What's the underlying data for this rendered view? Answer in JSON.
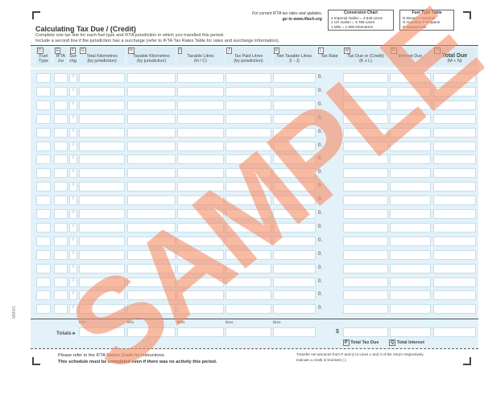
{
  "note": [
    "For current IFTA tax rates and updates,",
    "go to www.iftach.org"
  ],
  "conversion": {
    "title": "Conversion Chart",
    "lines": [
      "1 Imperial Gallon = 4.546 Litres",
      "1 US Gallon      = 3.785 Litres",
      "1 Mile = 1.609 Kilometres"
    ]
  },
  "fuel": {
    "title": "Fuel Type Table",
    "lines": [
      "D-Diesel     A-Gasohol",
      "G-Gasoline   P-Propane",
      "N-Natural Gas"
    ]
  },
  "title": "Calculating Tax Due / (Credit)",
  "instructions": [
    "Complete one tax line for each fuel type and  IFTA jurisdiction in which you travelled this period.",
    "Include a second line if the jurisdiction has a surcharge (refer to IFTA Tax Rates Table for rates and surcharge information)."
  ],
  "columns": [
    {
      "letter": "D",
      "label": "Fuel Type",
      "sub": ""
    },
    {
      "letter": "E",
      "label": "IFTA Jur",
      "sub": ""
    },
    {
      "letter": "F",
      "label": "Sur-chg.",
      "sub": ""
    },
    {
      "letter": "G",
      "label": "Total Kilometres",
      "sub": "(by jurisdiction)"
    },
    {
      "letter": "H",
      "label": "Taxable Kilometres",
      "sub": "(by jurisdiction)"
    },
    {
      "letter": "I",
      "label": "Taxable Litres",
      "sub": "(H / C)"
    },
    {
      "letter": "J",
      "label": "Tax Paid Litres",
      "sub": "(by jurisdiction)"
    },
    {
      "letter": "K",
      "label": "Net Taxable Litres",
      "sub": "(I - J)"
    },
    {
      "letter": "L",
      "label": "Tax Rate",
      "sub": ""
    },
    {
      "letter": "M",
      "label": "Tax Due or (Credit)",
      "sub": "(K x L)"
    },
    {
      "letter": "N",
      "label": "Interest Due",
      "sub": ""
    },
    {
      "letter": "O",
      "label": "Total Due",
      "sub": "(M + N)"
    }
  ],
  "row_prefix": "0.",
  "surcharge_mark": "X",
  "row_count": 18,
  "totals": {
    "label": "Totals ▸",
    "units": [
      "kms",
      "kms",
      "litres",
      "litres",
      "litres"
    ],
    "currency": "$",
    "p_letter": "P",
    "p_label": "Total Tax Due",
    "q_letter": "Q",
    "q_label": "Total Interest"
  },
  "footer": {
    "line1": "Please refer to the IFTA Return Guide for instructions.",
    "line2": "This schedule must be completed even if there was no activity this period.",
    "transfer": "Transfer net amounts from P and Q to Lines 1 and 3 of the return respectively.",
    "credit": "Indicate a credit in brackets ( )."
  },
  "side_code": "MMW1",
  "watermark": "SAMPLE"
}
